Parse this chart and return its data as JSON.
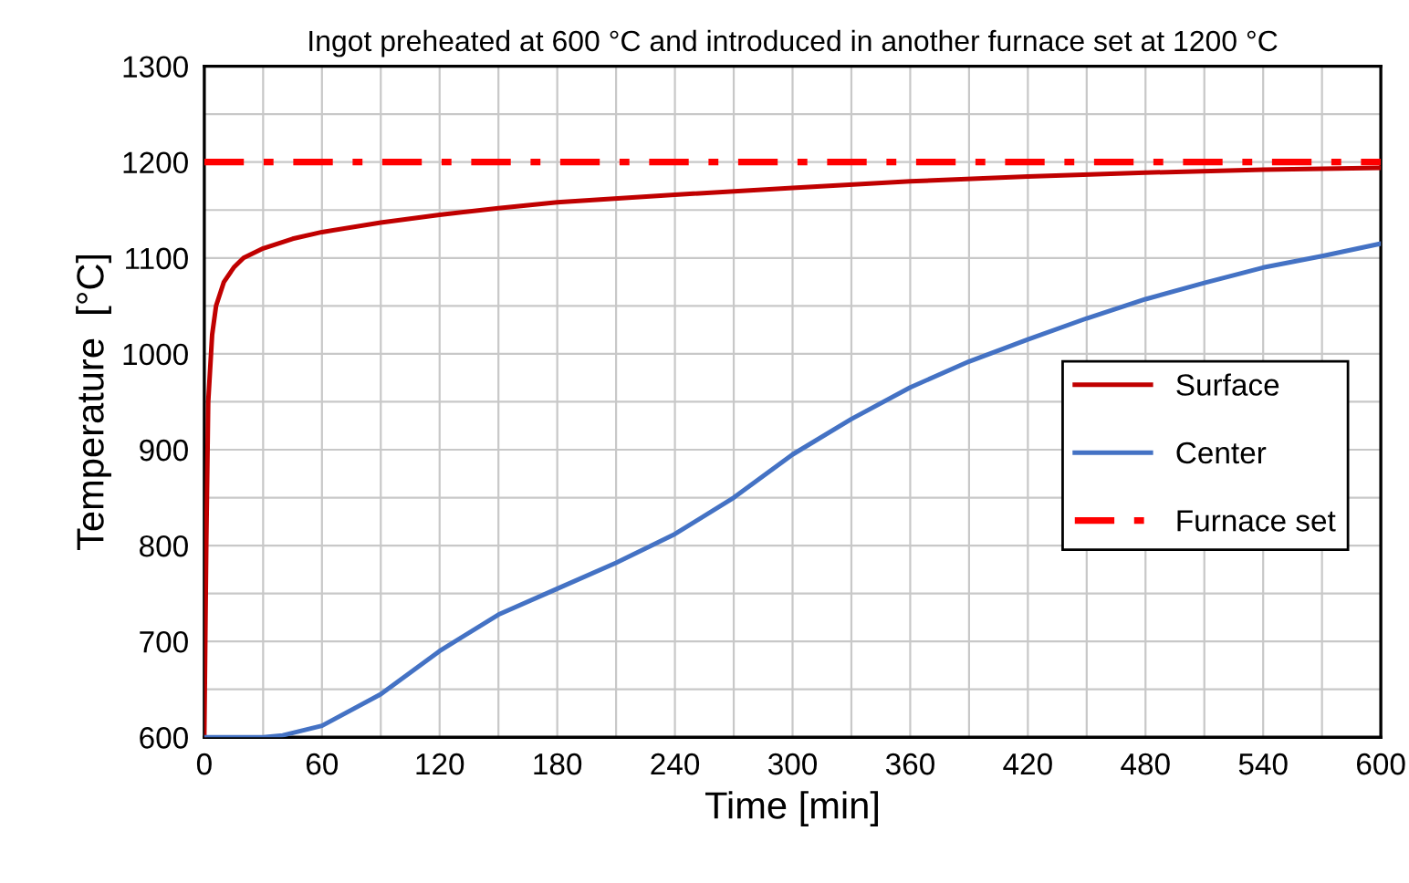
{
  "chart_data": {
    "type": "line",
    "title": "Ingot preheated at 600 °C and introduced in another furnace set at 1200 °C",
    "xlabel": "Time [min]",
    "ylabel": "Temperature  [°C]",
    "xlim": [
      0,
      600
    ],
    "xticks": [
      0,
      60,
      120,
      180,
      240,
      300,
      360,
      420,
      480,
      540,
      600
    ],
    "ylim": [
      600,
      1300
    ],
    "yticks": [
      600,
      700,
      800,
      900,
      1000,
      1100,
      1200,
      1300
    ],
    "grid": true,
    "legend": "right",
    "marker": "none",
    "series": [
      {
        "name": "Surface",
        "color": "#c00000",
        "line_style": "solid",
        "x": [
          0,
          1,
          2,
          4,
          6,
          10,
          15,
          20,
          30,
          45,
          60,
          90,
          120,
          150,
          180,
          240,
          300,
          360,
          420,
          480,
          540,
          600
        ],
        "values": [
          600,
          800,
          950,
          1020,
          1050,
          1075,
          1090,
          1100,
          1110,
          1120,
          1127,
          1137,
          1145,
          1152,
          1158,
          1166,
          1173,
          1180,
          1185,
          1189,
          1192,
          1194
        ]
      },
      {
        "name": "Center",
        "color": "#4472c4",
        "line_style": "solid",
        "x": [
          0,
          30,
          40,
          60,
          90,
          120,
          150,
          180,
          210,
          240,
          270,
          300,
          330,
          360,
          390,
          420,
          450,
          480,
          510,
          540,
          570,
          600
        ],
        "values": [
          600,
          600,
          602,
          612,
          645,
          690,
          728,
          755,
          782,
          812,
          850,
          895,
          932,
          965,
          992,
          1015,
          1037,
          1057,
          1074,
          1090,
          1102,
          1115
        ]
      },
      {
        "name": "Furnace set",
        "color": "#ff0000",
        "line_style": "dashdot",
        "x": [
          0,
          600
        ],
        "values": [
          1200,
          1200
        ]
      }
    ]
  }
}
